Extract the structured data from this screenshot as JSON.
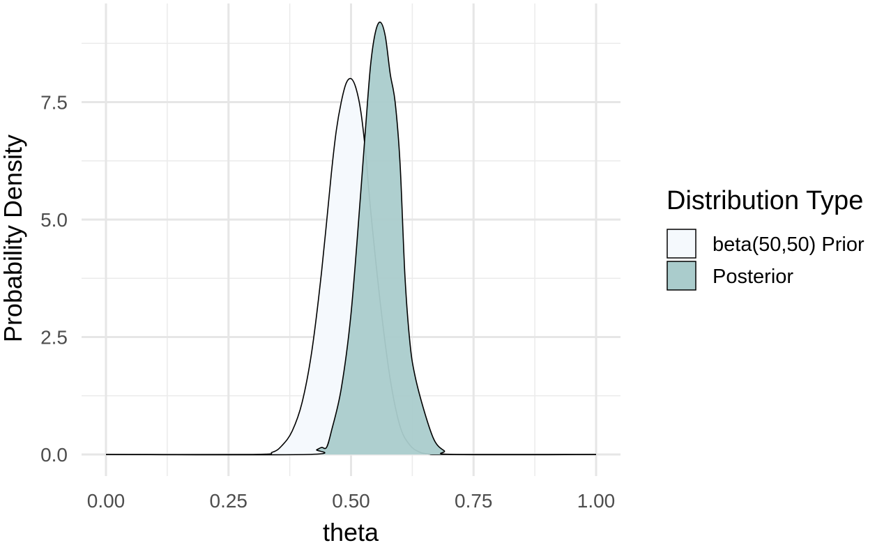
{
  "chart_data": {
    "type": "area",
    "xlabel": "theta",
    "ylabel": "Probability Density",
    "xlim": [
      0,
      1
    ],
    "ylim": [
      0,
      9.3
    ],
    "x_ticks": [
      "0.00",
      "0.25",
      "0.50",
      "0.75",
      "1.00"
    ],
    "y_ticks": [
      "0.0",
      "2.5",
      "5.0",
      "7.5"
    ],
    "grid": true,
    "legend": {
      "title": "Distribution Type",
      "placement": "right"
    },
    "series": [
      {
        "name": "beta(50,50) Prior",
        "fill": "#f5f9fd",
        "x": [
          0.0,
          0.3,
          0.34,
          0.36,
          0.38,
          0.4,
          0.42,
          0.44,
          0.46,
          0.47,
          0.48,
          0.49,
          0.5,
          0.51,
          0.52,
          0.53,
          0.54,
          0.56,
          0.58,
          0.6,
          0.62,
          0.64,
          0.66,
          0.7,
          1.0
        ],
        "y": [
          0.0,
          0.0,
          0.05,
          0.2,
          0.5,
          1.1,
          2.2,
          3.9,
          6.0,
          6.9,
          7.5,
          7.9,
          8.0,
          7.8,
          7.3,
          6.4,
          5.2,
          3.2,
          1.6,
          0.6,
          0.2,
          0.05,
          0.01,
          0.0,
          0.0
        ]
      },
      {
        "name": "Posterior",
        "fill": "#aacccc",
        "x": [
          0.0,
          0.41,
          0.43,
          0.44,
          0.45,
          0.46,
          0.48,
          0.5,
          0.52,
          0.53,
          0.54,
          0.55,
          0.56,
          0.57,
          0.58,
          0.59,
          0.6,
          0.61,
          0.62,
          0.63,
          0.65,
          0.67,
          0.69,
          0.71,
          1.0
        ],
        "y": [
          0.0,
          0.0,
          0.1,
          0.15,
          0.15,
          0.5,
          1.4,
          3.0,
          5.6,
          7.0,
          8.3,
          9.0,
          9.2,
          8.9,
          8.1,
          7.5,
          6.2,
          3.8,
          2.4,
          1.7,
          0.9,
          0.3,
          0.08,
          0.0,
          0.0
        ]
      }
    ]
  }
}
